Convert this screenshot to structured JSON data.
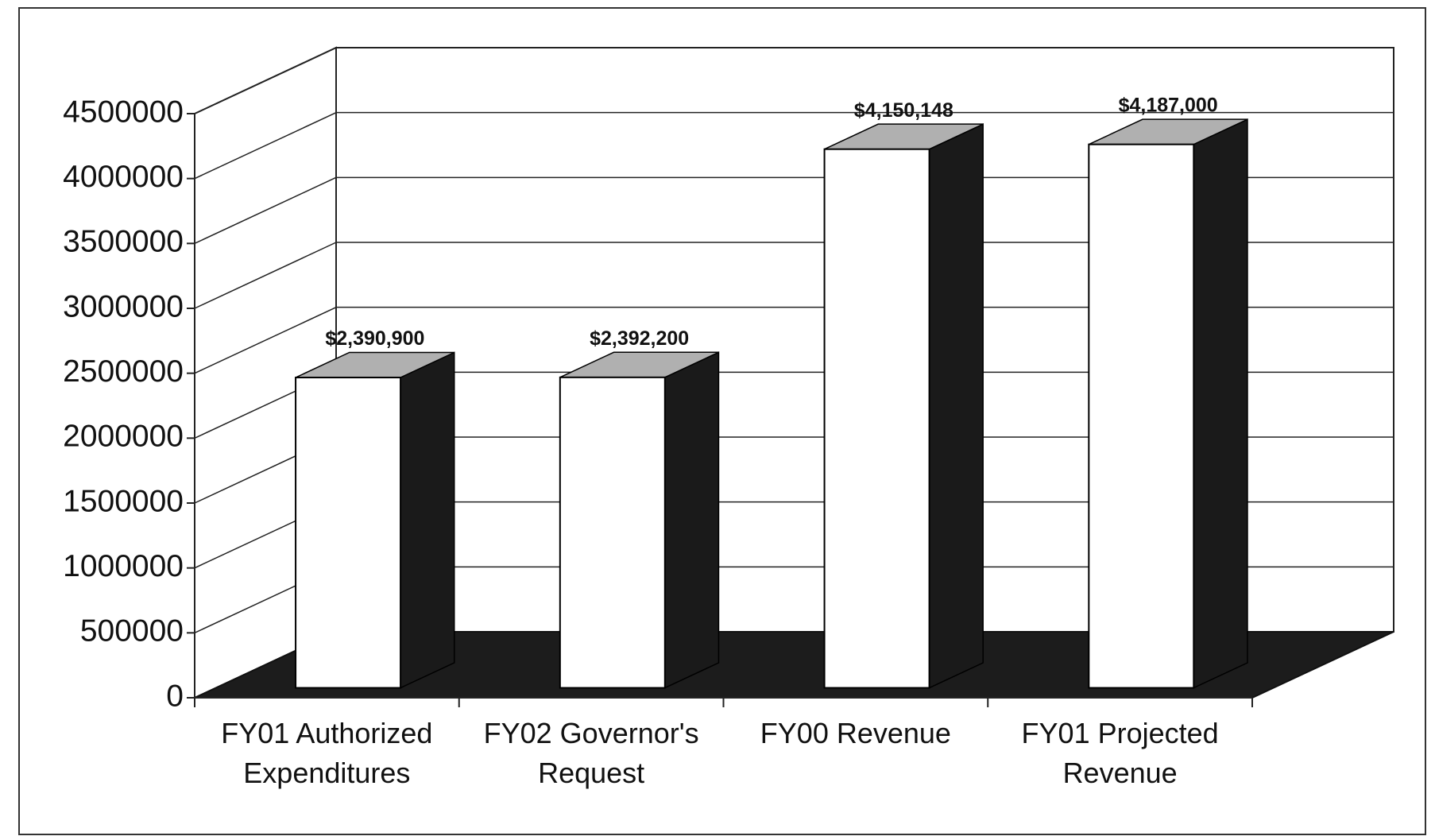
{
  "chart_data": {
    "type": "bar3d",
    "categories": [
      "FY01 Authorized Expenditures",
      "FY02 Governor's Request",
      "FY00 Revenue",
      "FY01 Projected Revenue"
    ],
    "values": [
      2390900,
      2392200,
      4150148,
      4187000
    ],
    "value_labels": [
      "$2,390,900",
      "$2,392,200",
      "$4,150,148",
      "$4,187,000"
    ],
    "ylim": [
      0,
      4500000
    ],
    "yticks": [
      0,
      500000,
      1000000,
      1500000,
      2000000,
      2500000,
      3000000,
      3500000,
      4000000,
      4500000
    ],
    "grid": true,
    "color": "#ffffff"
  }
}
